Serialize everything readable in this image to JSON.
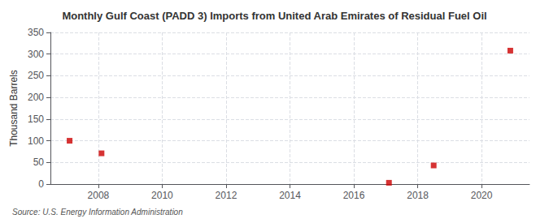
{
  "chart_data": {
    "type": "scatter",
    "title": "Monthly Gulf Coast (PADD 3) Imports from United Arab Emirates of Residual Fuel Oil",
    "ylabel": "Thousand Barrels",
    "annotation": "Source: U.S. Energy Information Administration",
    "x": [
      2007.1,
      2008.1,
      2017.1,
      2018.5,
      2020.9
    ],
    "values": [
      100,
      71,
      3,
      43,
      308
    ],
    "color": "#cc0000",
    "marker": "square",
    "xlim": [
      2006.5,
      2021.5
    ],
    "xticks": [
      2008,
      2010,
      2012,
      2014,
      2016,
      2018,
      2020
    ],
    "ylim": [
      0,
      350
    ],
    "yticks": [
      0,
      50,
      100,
      150,
      200,
      250,
      300,
      350
    ],
    "grid": true
  }
}
